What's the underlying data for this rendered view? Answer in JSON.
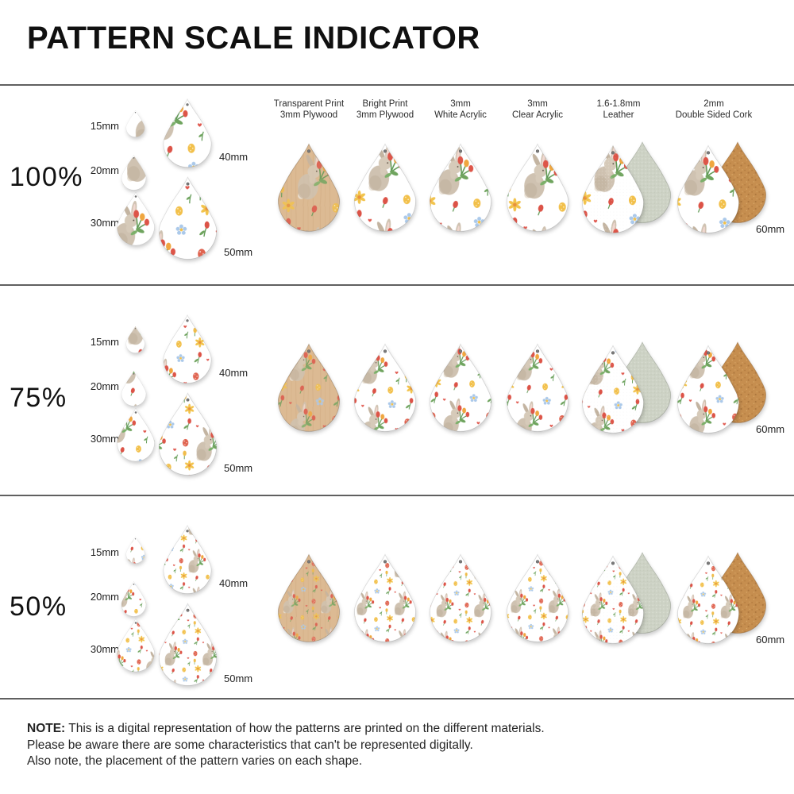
{
  "title": "PATTERN SCALE INDICATOR",
  "sections": [
    {
      "scale_label": "100%",
      "scale": 1
    },
    {
      "scale_label": "75%",
      "scale": 0.75
    },
    {
      "scale_label": "50%",
      "scale": 0.5
    }
  ],
  "size_chart": {
    "labels": [
      "15mm",
      "20mm",
      "30mm",
      "40mm",
      "50mm"
    ],
    "sizes_mm": [
      15,
      20,
      30,
      40,
      50
    ]
  },
  "large_size_label": "60mm",
  "materials": [
    {
      "line1": "Transparent Print",
      "line2": "3mm Plywood",
      "type": "transparent-plywood"
    },
    {
      "line1": "Bright Print",
      "line2": "3mm Plywood",
      "type": "bright-plywood"
    },
    {
      "line1": "3mm",
      "line2": "White Acrylic",
      "type": "white-acrylic"
    },
    {
      "line1": "3mm",
      "line2": "Clear Acrylic",
      "type": "clear-acrylic"
    },
    {
      "line1": "1.6-1.8mm",
      "line2": "Leather",
      "type": "leather"
    },
    {
      "line1": "2mm",
      "line2": "Double Sided Cork",
      "type": "cork"
    }
  ],
  "note": {
    "prefix": "NOTE:",
    "line1": "This is a digital representation of how the patterns are printed on the different materials.",
    "line2": "Please be aware there are some characteristics that can't be represented digitally.",
    "line3": "Also note, the placement of the pattern varies on each shape."
  },
  "pattern": {
    "description": "Watercolor Easter bunny holding tulips, with daffodils, eggs, blue flowers and hearts",
    "colors": {
      "red": "#dc5347",
      "yellow": "#f2c04a",
      "orange": "#f0a63f",
      "green": "#5d9852",
      "blue": "#abc9ea",
      "bunny_fur": "#cfc2b1",
      "wood": "#dcba93",
      "cork": "#c68e4f",
      "suede": "#cdd2c5"
    }
  },
  "divider_color": "#606060"
}
